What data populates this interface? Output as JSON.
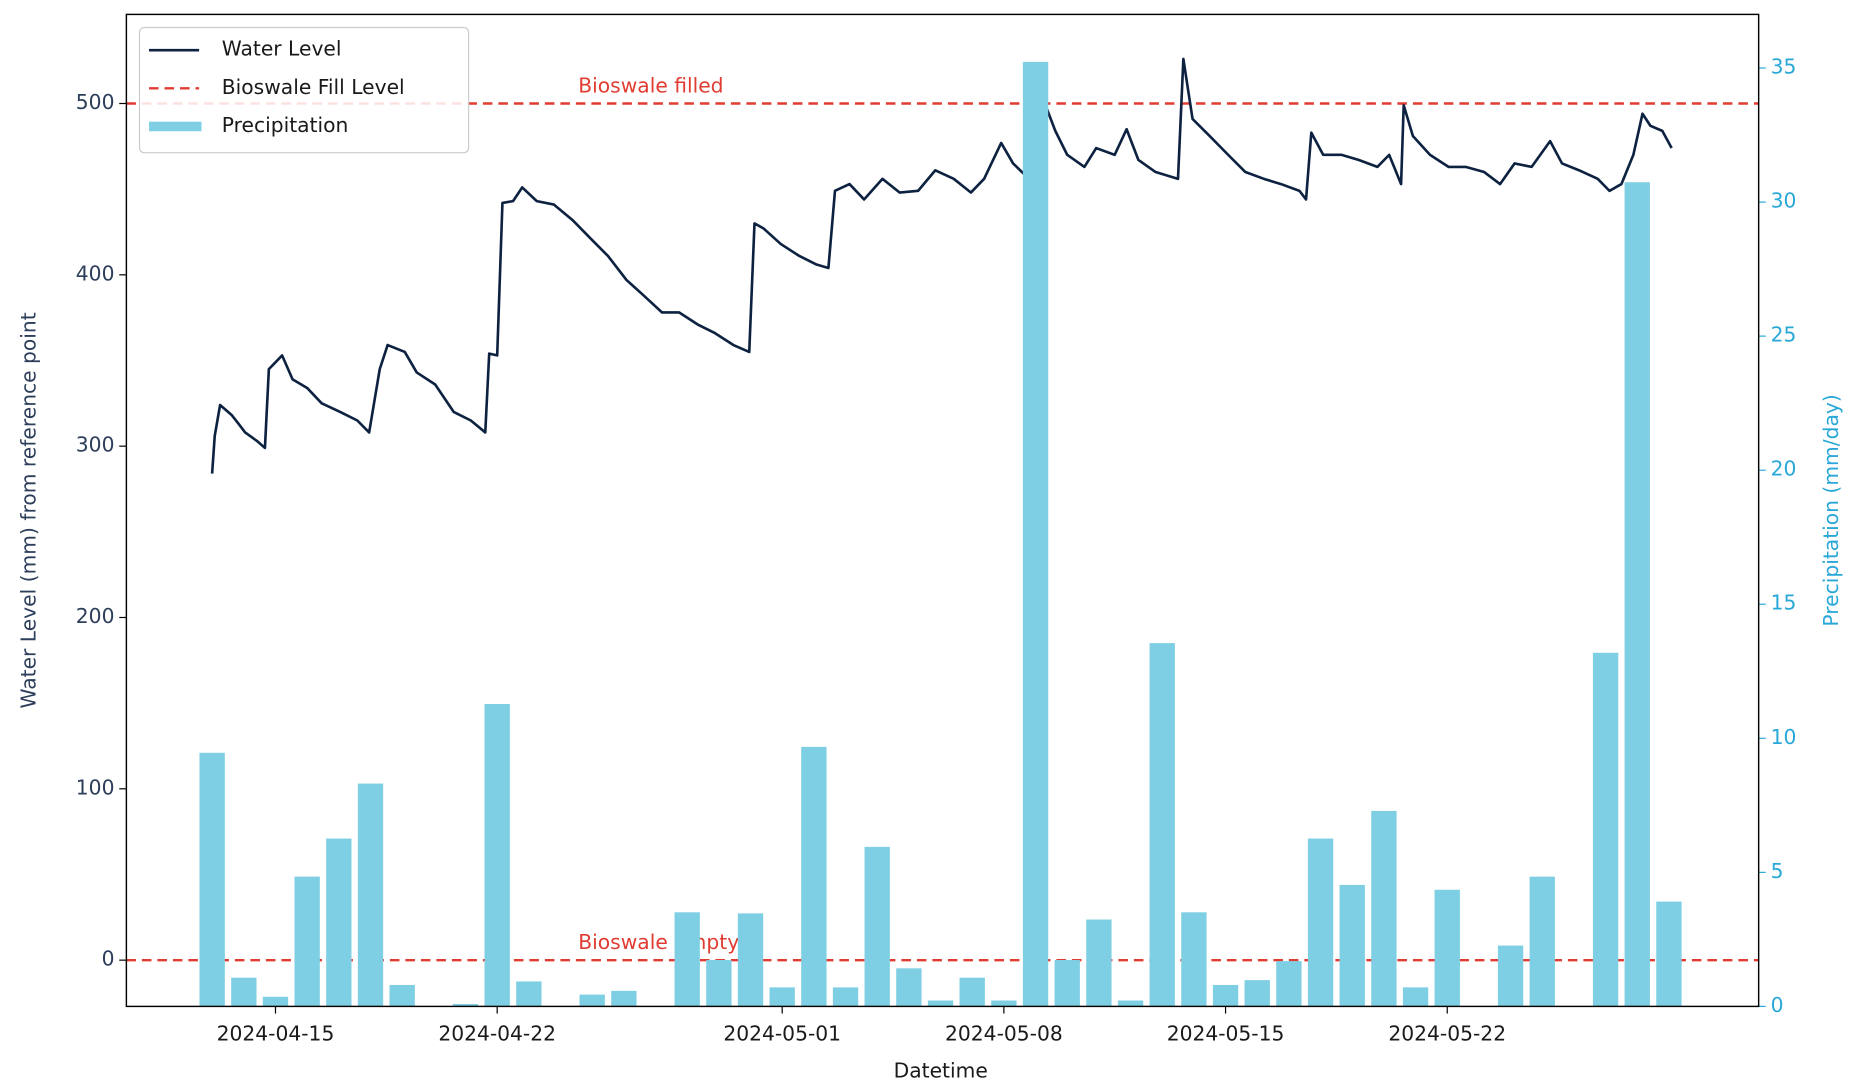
{
  "chart_data": {
    "type": "combo",
    "x_label": "Datetime",
    "y_label": "Water Level (mm) from reference point",
    "y2_label": "Precipitation (mm/day)",
    "xlim": [
      "2024-04-10T07:00",
      "2024-05-31T20:00"
    ],
    "xticks": [
      "2024-04-15",
      "2024-04-22",
      "2024-05-01",
      "2024-05-08",
      "2024-05-15",
      "2024-05-22"
    ],
    "ylim": [
      -27,
      552
    ],
    "yticks": [
      0,
      100,
      200,
      300,
      400,
      500
    ],
    "y2lim": [
      0,
      37
    ],
    "y2ticks": [
      0,
      5,
      10,
      15,
      20,
      25,
      30,
      35
    ],
    "y2_color": "#29a8d8",
    "legend": "upper left",
    "series": [
      {
        "name": "Water Level",
        "type": "line",
        "color": "#0d2240",
        "x": [
          "2024-04-13T00:00",
          "2024-04-13T02:00",
          "2024-04-13T06:00",
          "2024-04-13T15:00",
          "2024-04-13T20:00",
          "2024-04-14T01:00",
          "2024-04-14T10:00",
          "2024-04-14T16:00",
          "2024-04-14T19:00",
          "2024-04-15T05:00",
          "2024-04-15T13:00",
          "2024-04-16T00:00",
          "2024-04-16T11:00",
          "2024-04-17T01:00",
          "2024-04-17T14:00",
          "2024-04-17T23:00",
          "2024-04-18T07:00",
          "2024-04-18T13:00",
          "2024-04-19T02:00",
          "2024-04-19T11:00",
          "2024-04-20T01:00",
          "2024-04-20T15:00",
          "2024-04-21T04:00",
          "2024-04-21T15:00",
          "2024-04-21T18:00",
          "2024-04-22T00:00",
          "2024-04-22T04:00",
          "2024-04-22T12:00",
          "2024-04-22T19:00",
          "2024-04-23T06:00",
          "2024-04-23T19:00",
          "2024-04-24T09:00",
          "2024-04-24T23:00",
          "2024-04-25T12:00",
          "2024-04-26T02:00",
          "2024-04-26T15:00",
          "2024-04-27T05:00",
          "2024-04-27T18:00",
          "2024-04-28T08:00",
          "2024-04-28T21:00",
          "2024-04-29T11:00",
          "2024-04-29T23:00",
          "2024-04-30T03:00",
          "2024-04-30T10:00",
          "2024-04-30T23:00",
          "2024-05-01T13:00",
          "2024-05-02T02:00",
          "2024-05-02T11:00",
          "2024-05-02T16:00",
          "2024-05-03T03:00",
          "2024-05-03T14:00",
          "2024-05-04T04:00",
          "2024-05-04T17:00",
          "2024-05-05T07:00",
          "2024-05-05T20:00",
          "2024-05-06T10:00",
          "2024-05-06T23:00",
          "2024-05-07T09:00",
          "2024-05-07T22:00",
          "2024-05-08T07:00",
          "2024-05-08T19:00",
          "2024-05-09T03:00",
          "2024-05-09T07:00",
          "2024-05-09T15:00",
          "2024-05-10T00:00",
          "2024-05-10T13:00",
          "2024-05-10T22:00",
          "2024-05-11T12:00",
          "2024-05-11T21:00",
          "2024-05-12T06:00",
          "2024-05-12T19:00",
          "2024-05-13T12:00",
          "2024-05-13T16:00",
          "2024-05-13T23:00",
          "2024-05-14T12:00",
          "2024-05-15T02:00",
          "2024-05-15T15:00",
          "2024-05-16T05:00",
          "2024-05-16T18:00",
          "2024-05-17T08:00",
          "2024-05-17T13:00",
          "2024-05-17T17:00",
          "2024-05-18T02:00",
          "2024-05-18T16:00",
          "2024-05-19T05:00",
          "2024-05-19T19:00",
          "2024-05-20T04:00",
          "2024-05-20T13:00",
          "2024-05-20T15:00",
          "2024-05-20T22:00",
          "2024-05-21T11:00",
          "2024-05-22T01:00",
          "2024-05-22T14:00",
          "2024-05-23T04:00",
          "2024-05-23T16:00",
          "2024-05-24T03:00",
          "2024-05-24T16:00",
          "2024-05-25T06:00",
          "2024-05-25T15:00",
          "2024-05-26T04:00",
          "2024-05-26T18:00",
          "2024-05-27T03:00",
          "2024-05-27T12:00",
          "2024-05-27T21:00",
          "2024-05-28T04:00",
          "2024-05-28T10:00",
          "2024-05-28T19:00",
          "2024-05-29T02:00"
        ],
        "values": [
          284,
          306,
          324,
          318,
          313,
          308,
          303,
          299,
          345,
          353,
          339,
          334,
          325,
          320,
          315,
          308,
          345,
          359,
          355,
          343,
          336,
          320,
          315,
          308,
          354,
          353,
          442,
          443,
          451,
          443,
          441,
          432,
          421,
          411,
          397,
          388,
          378,
          378,
          371,
          366,
          359,
          355,
          430,
          427,
          418,
          411,
          406,
          404,
          449,
          453,
          444,
          456,
          448,
          449,
          461,
          456,
          448,
          456,
          477,
          465,
          456,
          453,
          500,
          484,
          470,
          463,
          474,
          470,
          485,
          467,
          460,
          456,
          526,
          491,
          481,
          470,
          460,
          456,
          453,
          449,
          444,
          483,
          470,
          470,
          467,
          463,
          470,
          453,
          499,
          481,
          470,
          463,
          463,
          460,
          453,
          465,
          463,
          478,
          465,
          461,
          456,
          449,
          453,
          470,
          494,
          487,
          484,
          474
        ]
      },
      {
        "name": "Precipitation",
        "type": "bar",
        "axis": "y2",
        "color": "#7ecfe3",
        "x": [
          "2024-04-13",
          "2024-04-14",
          "2024-04-15",
          "2024-04-16",
          "2024-04-17",
          "2024-04-18",
          "2024-04-19",
          "2024-04-20",
          "2024-04-21",
          "2024-04-22",
          "2024-04-23",
          "2024-04-24",
          "2024-04-25",
          "2024-04-26",
          "2024-04-27",
          "2024-04-28",
          "2024-04-29",
          "2024-04-30",
          "2024-05-01",
          "2024-05-02",
          "2024-05-03",
          "2024-05-04",
          "2024-05-05",
          "2024-05-06",
          "2024-05-07",
          "2024-05-08",
          "2024-05-09",
          "2024-05-10",
          "2024-05-11",
          "2024-05-12",
          "2024-05-13",
          "2024-05-14",
          "2024-05-15",
          "2024-05-16",
          "2024-05-17",
          "2024-05-18",
          "2024-05-19",
          "2024-05-20",
          "2024-05-21",
          "2024-05-22",
          "2024-05-23",
          "2024-05-24",
          "2024-05-25",
          "2024-05-26",
          "2024-05-27",
          "2024-05-28",
          "2024-05-29"
        ],
        "values": [
          9.46,
          1.07,
          0.36,
          4.84,
          6.26,
          8.31,
          0.8,
          0,
          0.09,
          11.28,
          0.93,
          0,
          0.44,
          0.58,
          0,
          3.51,
          1.73,
          3.47,
          0.71,
          9.68,
          0.71,
          5.95,
          1.42,
          0.22,
          1.07,
          0.22,
          35.23,
          1.73,
          3.24,
          0.22,
          13.55,
          3.51,
          0.8,
          0.98,
          1.69,
          6.26,
          4.53,
          7.29,
          0.71,
          4.35,
          0,
          2.27,
          4.84,
          0,
          13.19,
          30.74,
          3.91
        ]
      }
    ],
    "reference_lines": {
      "name": "Bioswale Fill Level",
      "color": "#e03c31",
      "values": [
        500,
        0
      ],
      "labels": [
        "Bioswale filled",
        "Bioswale empty"
      ]
    }
  }
}
